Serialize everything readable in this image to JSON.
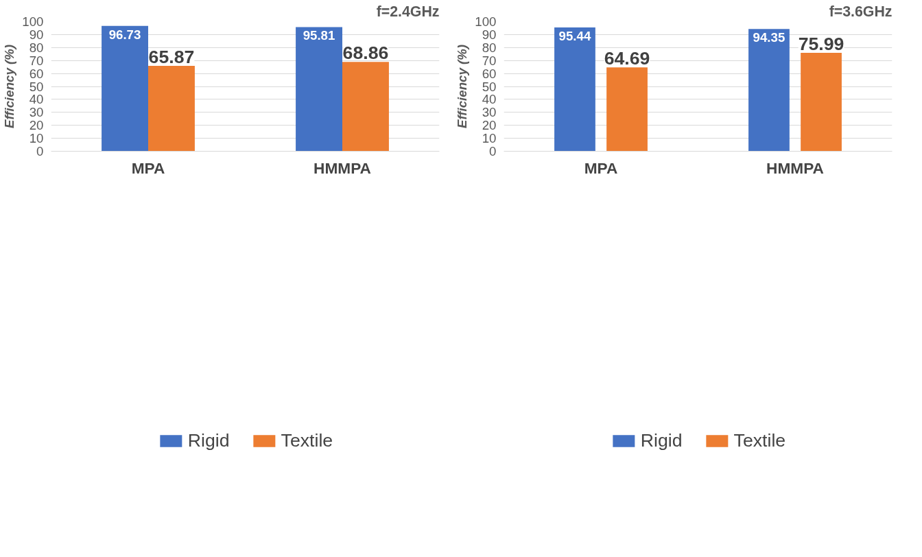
{
  "chart_data": [
    {
      "type": "bar",
      "categories": [
        "MPA",
        "HMMPA"
      ],
      "ylabel": "Efficiency (%)",
      "annotations": [
        "f=2.4GHz"
      ],
      "series": [
        {
          "name": "Rigid",
          "color": "#4472c4",
          "values": [
            96.73,
            95.81
          ]
        },
        {
          "name": "Textile",
          "color": "#ed7d31",
          "values": [
            65.87,
            68.86
          ]
        }
      ],
      "ylim": [
        0,
        100
      ],
      "yticks": [
        0,
        10,
        20,
        30,
        40,
        50,
        60,
        70,
        80,
        90,
        100
      ],
      "grid": "y",
      "legend": "bottom",
      "data_labels": true
    },
    {
      "type": "bar",
      "categories": [
        "MPA",
        "HMMPA"
      ],
      "ylabel": "Efficiency (%)",
      "annotations": [
        "f=3.6GHz"
      ],
      "series": [
        {
          "name": "Rigid",
          "color": "#4472c4",
          "values": [
            95.44,
            94.35
          ]
        },
        {
          "name": "Textile",
          "color": "#ed7d31",
          "values": [
            64.69,
            75.99
          ]
        }
      ],
      "ylim": [
        0,
        100
      ],
      "yticks": [
        0,
        10,
        20,
        30,
        40,
        50,
        60,
        70,
        80,
        90,
        100
      ],
      "grid": "y",
      "legend": "bottom",
      "data_labels": true
    }
  ]
}
